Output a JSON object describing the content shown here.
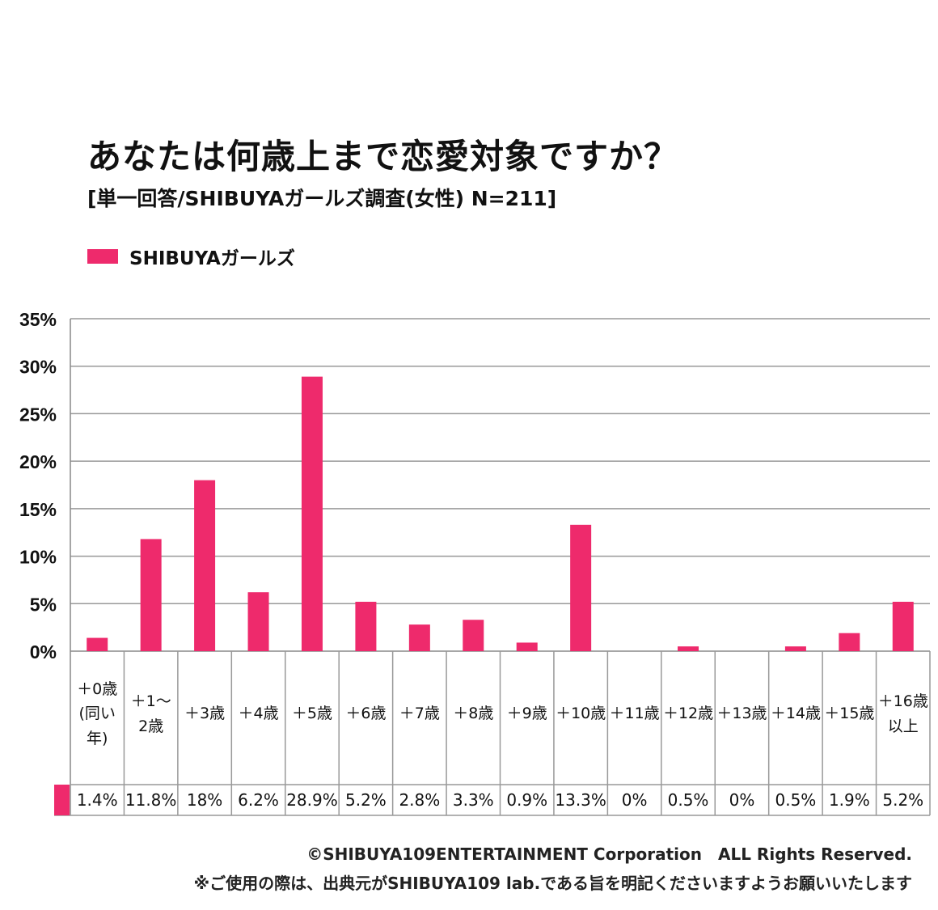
{
  "title": "あなたは何歳上まで恋愛対象ですか？",
  "subtitle": "[単一回答/SHIBUYAガールズ調査(女性) N=211]",
  "footer": {
    "copyright": "©SHIBUYA109ENTERTAINMENT Corporation　ALL Rights Reserved.",
    "note": "※ご使用の際は、出典元がSHIBUYA109 lab.である旨を明記くださいますようお願いいたします"
  },
  "chart_data": {
    "type": "bar",
    "title": "あなたは何歳上まで恋愛対象ですか？",
    "categories": [
      "＋0歳\n(同い年)",
      "＋1〜\n2歳",
      "＋3歳",
      "＋4歳",
      "＋5歳",
      "＋6歳",
      "＋7歳",
      "＋8歳",
      "＋9歳",
      "＋10歳",
      "＋11歳",
      "＋12歳",
      "＋13歳",
      "＋14歳",
      "＋15歳",
      "＋16歳\n以上"
    ],
    "series": [
      {
        "name": "SHIBUYAガールズ",
        "color": "#ee2a6c",
        "values": [
          1.4,
          11.8,
          18,
          6.2,
          28.9,
          5.2,
          2.8,
          3.3,
          0.9,
          13.3,
          0,
          0.5,
          0,
          0.5,
          1.9,
          5.2
        ]
      }
    ],
    "value_labels": [
      "1.4%",
      "11.8%",
      "18%",
      "6.2%",
      "28.9%",
      "5.2%",
      "2.8%",
      "3.3%",
      "0.9%",
      "13.3%",
      "0%",
      "0.5%",
      "0%",
      "0.5%",
      "1.9%",
      "5.2%"
    ],
    "yticks": [
      "0%",
      "5%",
      "10%",
      "15%",
      "20%",
      "25%",
      "30%",
      "35%"
    ],
    "ylim": [
      0,
      35
    ],
    "grid": true,
    "legend": "top-left"
  }
}
